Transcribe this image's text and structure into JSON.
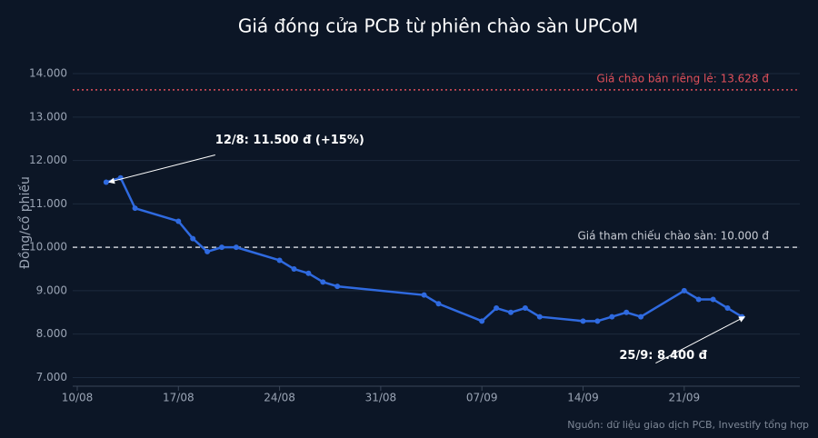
{
  "chart_data": {
    "type": "line",
    "title": "Giá đóng cửa PCB từ phiên chào sàn UPCoM",
    "y_label": "Đồng/cổ phiếu",
    "source": "Nguồn: dữ liệu giao dịch PCB, Investify tổng hợp",
    "x": [
      "12/08",
      "13/08",
      "14/08",
      "17/08",
      "18/08",
      "19/08",
      "20/08",
      "21/08",
      "24/08",
      "25/08",
      "26/08",
      "27/08",
      "28/08",
      "03/09",
      "04/09",
      "07/09",
      "08/09",
      "09/09",
      "10/09",
      "11/09",
      "14/09",
      "15/09",
      "16/09",
      "17/09",
      "18/09",
      "21/09",
      "22/09",
      "23/09",
      "24/09",
      "25/09"
    ],
    "series": [
      {
        "name": "PCB",
        "color": "#2f6ae0",
        "values": [
          11500,
          11600,
          10900,
          10600,
          10200,
          9900,
          10000,
          10000,
          9700,
          9500,
          9400,
          9200,
          9100,
          8900,
          8700,
          8300,
          8600,
          8500,
          8600,
          8400,
          8300,
          8300,
          8400,
          8500,
          8400,
          9000,
          8800,
          8800,
          8600,
          8400
        ]
      }
    ],
    "xlim": [
      "10/08",
      "29/09"
    ],
    "xticks": [
      "10/08",
      "17/08",
      "24/08",
      "31/08",
      "07/09",
      "14/09",
      "21/09"
    ],
    "ylim": [
      6800,
      14650
    ],
    "yticks": [
      {
        "value": 7000,
        "label": "7.000"
      },
      {
        "value": 8000,
        "label": "8.000"
      },
      {
        "value": 9000,
        "label": "9.000"
      },
      {
        "value": 10000,
        "label": "10.000"
      },
      {
        "value": 11000,
        "label": "11.000"
      },
      {
        "value": 12000,
        "label": "12.000"
      },
      {
        "value": 13000,
        "label": "13.000"
      },
      {
        "value": 14000,
        "label": "14.000"
      }
    ],
    "grid": true,
    "reference_lines": [
      {
        "value": 13628,
        "label": "Giá chào bán riêng lẻ: 13.628 đ",
        "color": "#e0505a",
        "style": "dotted"
      },
      {
        "value": 10000,
        "label": "Giá tham chiếu chào sàn: 10.000 đ",
        "color": "#c8ccd4",
        "style": "dashed"
      }
    ],
    "annotations": [
      {
        "text": "12/8: 11.500 đ (+15%)",
        "x": "12/08",
        "y": 11500
      },
      {
        "text": "25/9: 8.400 đ",
        "x": "25/09",
        "y": 8400
      }
    ]
  }
}
